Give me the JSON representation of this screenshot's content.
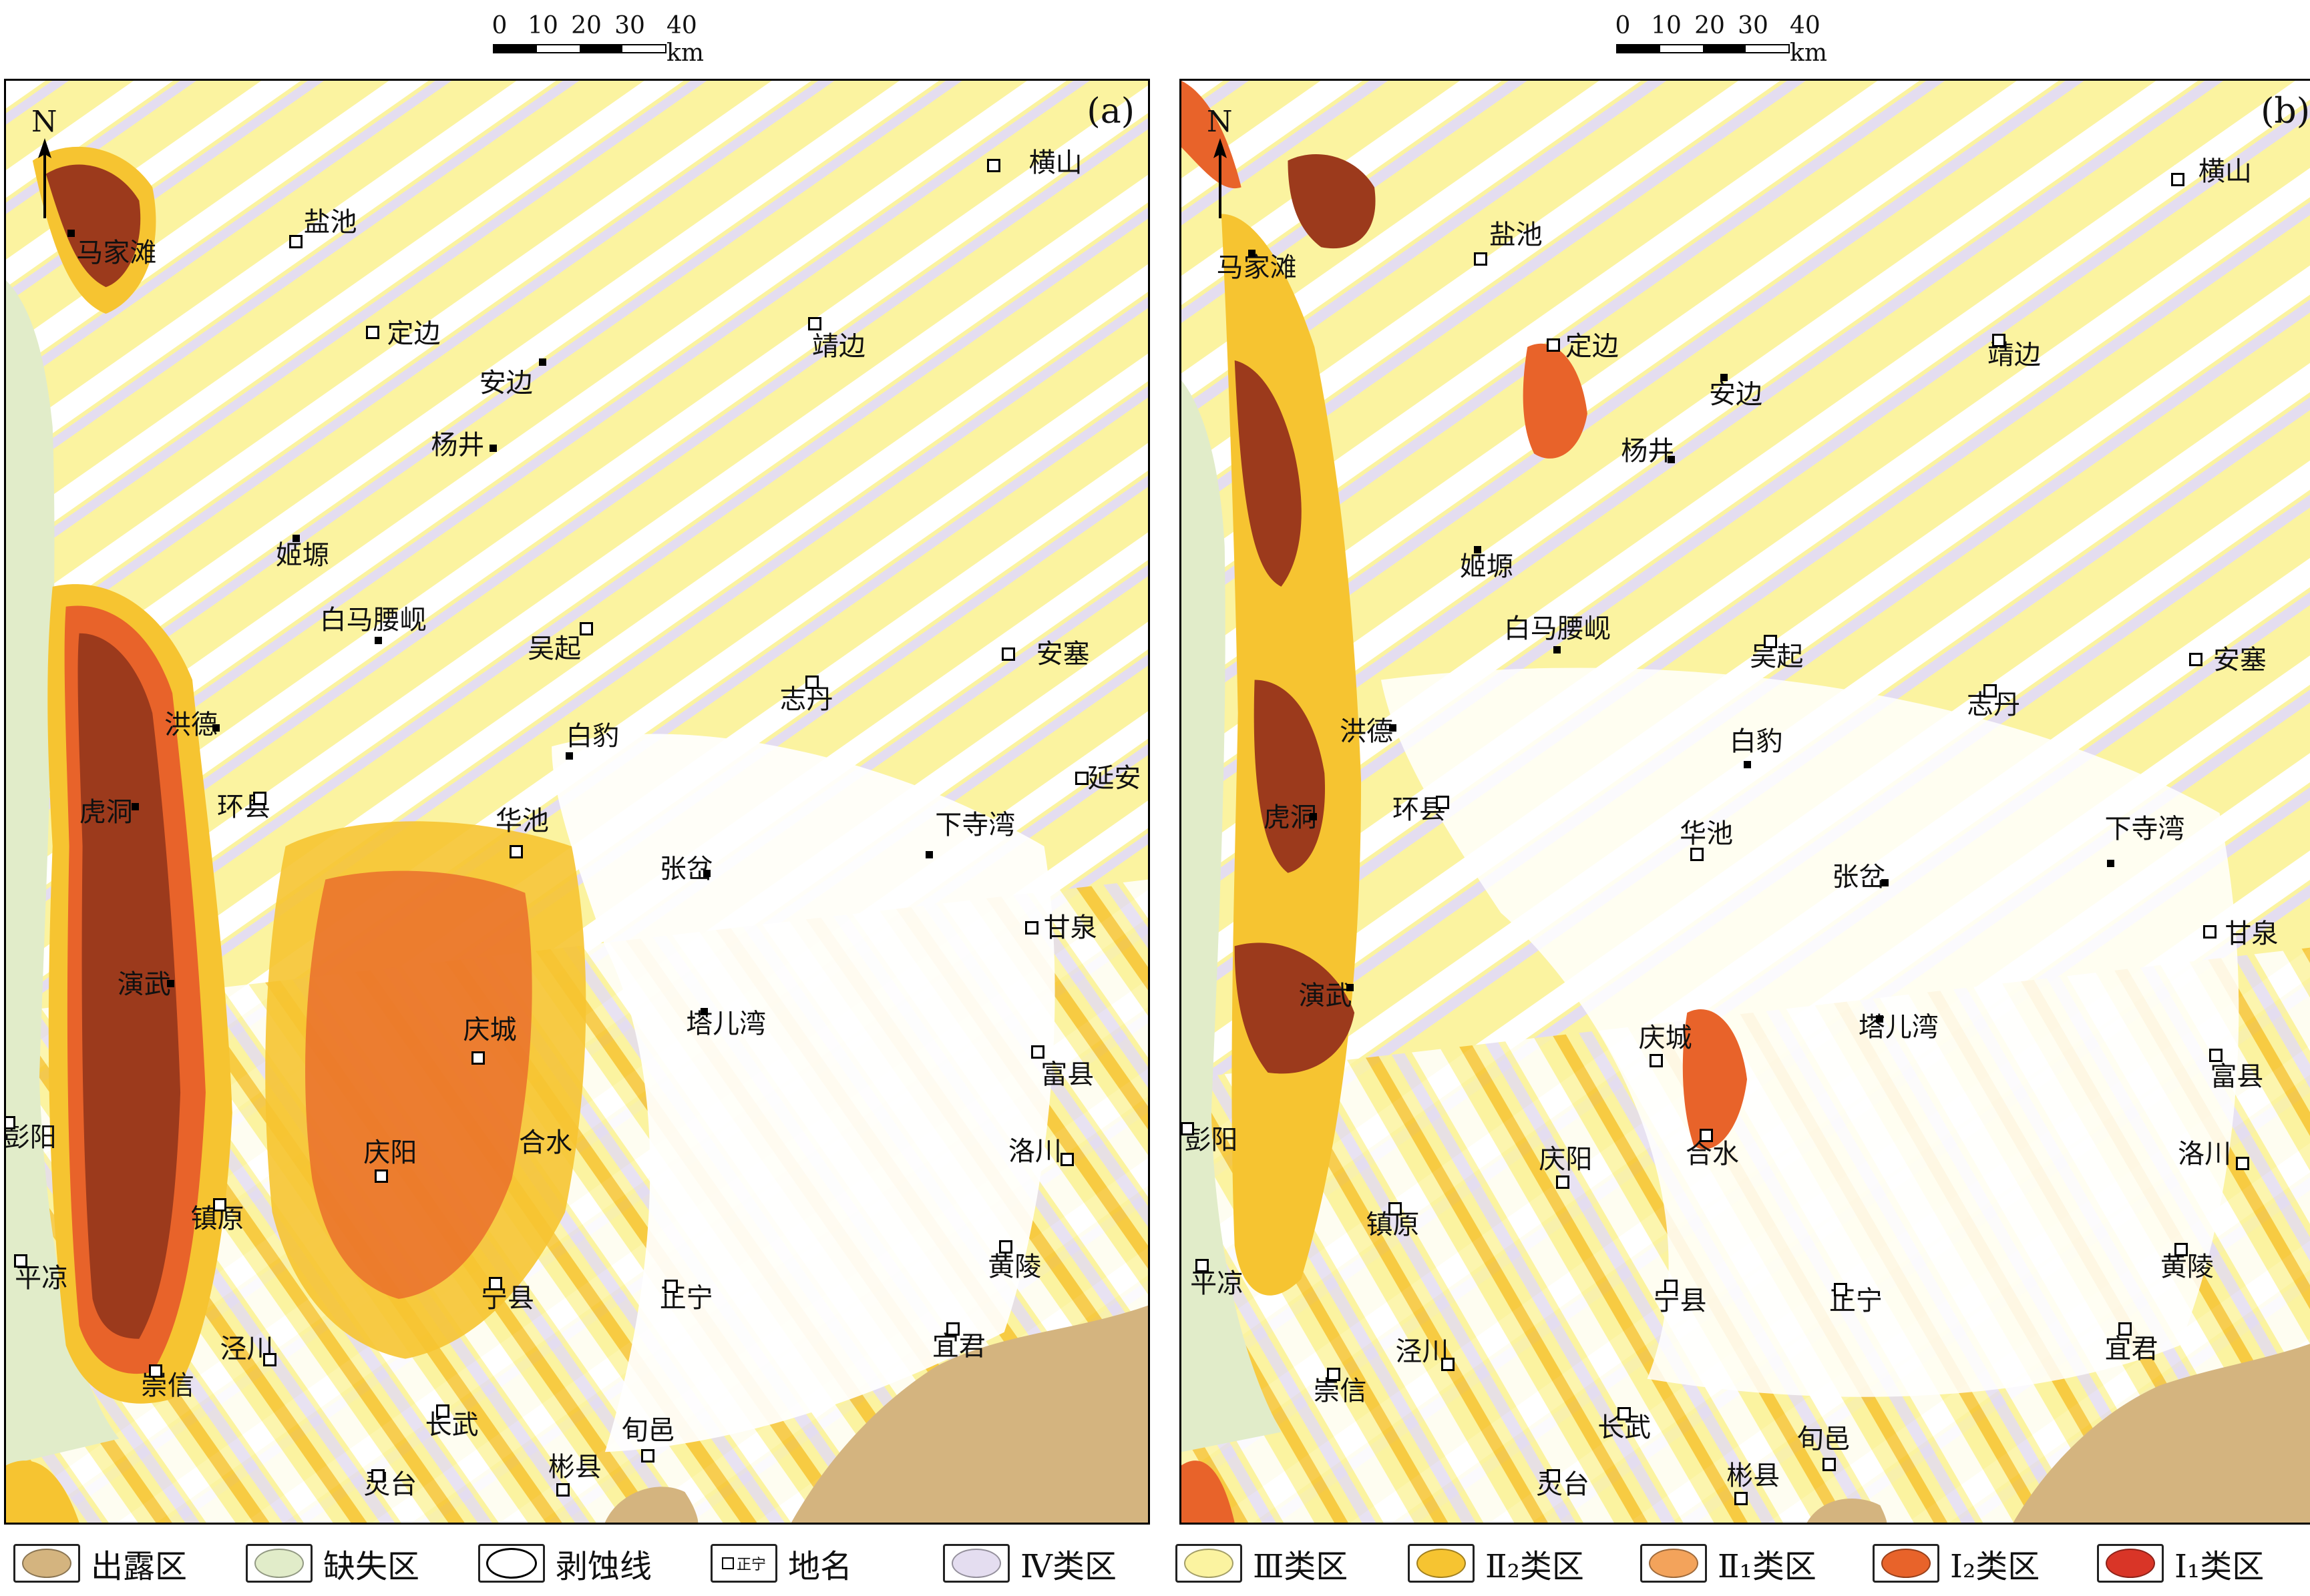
{
  "scale_bar": {
    "ticks": [
      "0",
      "10",
      "20",
      "30",
      "40 km"
    ]
  },
  "panels": [
    {
      "label": "(a)",
      "north": "N",
      "places": [
        {
          "name": "马家滩",
          "type": "dot"
        },
        {
          "name": "盐池",
          "type": "sq"
        },
        {
          "name": "横山",
          "type": "sq"
        },
        {
          "name": "定边",
          "type": "sq"
        },
        {
          "name": "安边",
          "type": "dot"
        },
        {
          "name": "靖边",
          "type": "sq"
        },
        {
          "name": "杨井",
          "type": "dot"
        },
        {
          "name": "姬塬",
          "type": "dot"
        },
        {
          "name": "白马腰岘",
          "type": "dot"
        },
        {
          "name": "吴起",
          "type": "sq"
        },
        {
          "name": "安塞",
          "type": "sq"
        },
        {
          "name": "志丹",
          "type": "sq"
        },
        {
          "name": "洪德",
          "type": "dot"
        },
        {
          "name": "白豹",
          "type": "dot"
        },
        {
          "name": "延安",
          "type": "sq"
        },
        {
          "name": "虎洞",
          "type": "dot"
        },
        {
          "name": "环县",
          "type": "sq"
        },
        {
          "name": "华池",
          "type": "sq"
        },
        {
          "name": "下寺湾",
          "type": "dot"
        },
        {
          "name": "张岔",
          "type": "dot"
        },
        {
          "name": "甘泉",
          "type": "sq"
        },
        {
          "name": "演武",
          "type": "dot"
        },
        {
          "name": "塔儿湾",
          "type": "dot"
        },
        {
          "name": "庆城",
          "type": "sq"
        },
        {
          "name": "富县",
          "type": "sq"
        },
        {
          "name": "彭阳",
          "type": "sq"
        },
        {
          "name": "庆阳",
          "type": "sq"
        },
        {
          "name": "合水",
          "type": "sq"
        },
        {
          "name": "洛川",
          "type": "sq"
        },
        {
          "name": "镇原",
          "type": "sq"
        },
        {
          "name": "平凉",
          "type": "sq"
        },
        {
          "name": "宁县",
          "type": "sq"
        },
        {
          "name": "正宁",
          "type": "sq"
        },
        {
          "name": "黄陵",
          "type": "sq"
        },
        {
          "name": "宜君",
          "type": "sq"
        },
        {
          "name": "泾川",
          "type": "sq"
        },
        {
          "name": "崇信",
          "type": "sq"
        },
        {
          "name": "长武",
          "type": "sq"
        },
        {
          "name": "旬邑",
          "type": "sq"
        },
        {
          "name": "彬县",
          "type": "sq"
        },
        {
          "name": "灵台",
          "type": "sq"
        }
      ]
    },
    {
      "label": "(b)",
      "north": "N",
      "places": [
        {
          "name": "马家滩",
          "type": "dot"
        },
        {
          "name": "盐池",
          "type": "sq"
        },
        {
          "name": "横山",
          "type": "sq"
        },
        {
          "name": "定边",
          "type": "sq"
        },
        {
          "name": "安边",
          "type": "dot"
        },
        {
          "name": "靖边",
          "type": "sq"
        },
        {
          "name": "杨井",
          "type": "dot"
        },
        {
          "name": "姬塬",
          "type": "dot"
        },
        {
          "name": "白马腰岘",
          "type": "dot"
        },
        {
          "name": "吴起",
          "type": "sq"
        },
        {
          "name": "安塞",
          "type": "sq"
        },
        {
          "name": "志丹",
          "type": "sq"
        },
        {
          "name": "洪德",
          "type": "dot"
        },
        {
          "name": "白豹",
          "type": "dot"
        },
        {
          "name": "虎洞",
          "type": "dot"
        },
        {
          "name": "环县",
          "type": "sq"
        },
        {
          "name": "华池",
          "type": "sq"
        },
        {
          "name": "下寺湾",
          "type": "dot"
        },
        {
          "name": "张岔",
          "type": "dot"
        },
        {
          "name": "甘泉",
          "type": "sq"
        },
        {
          "name": "演武",
          "type": "dot"
        },
        {
          "name": "塔儿湾",
          "type": "dot"
        },
        {
          "name": "庆城",
          "type": "sq"
        },
        {
          "name": "富县",
          "type": "sq"
        },
        {
          "name": "彭阳",
          "type": "sq"
        },
        {
          "name": "庆阳",
          "type": "sq"
        },
        {
          "name": "合水",
          "type": "sq"
        },
        {
          "name": "洛川",
          "type": "sq"
        },
        {
          "name": "镇原",
          "type": "sq"
        },
        {
          "name": "平凉",
          "type": "sq"
        },
        {
          "name": "宁县",
          "type": "sq"
        },
        {
          "name": "正宁",
          "type": "sq"
        },
        {
          "name": "黄陵",
          "type": "sq"
        },
        {
          "name": "宜君",
          "type": "sq"
        },
        {
          "name": "泾川",
          "type": "sq"
        },
        {
          "name": "崇信",
          "type": "sq"
        },
        {
          "name": "长武",
          "type": "sq"
        },
        {
          "name": "旬邑",
          "type": "sq"
        },
        {
          "name": "彬县",
          "type": "sq"
        },
        {
          "name": "灵台",
          "type": "sq"
        }
      ]
    }
  ],
  "legend": [
    {
      "label": "出露区",
      "color": "#d4b47f"
    },
    {
      "label": "缺失区",
      "color": "#e1ecc9"
    },
    {
      "label": "剥蚀线",
      "color": "#ffffff"
    },
    {
      "label": "地名",
      "sample": "正宁"
    },
    {
      "label": "Ⅳ类区",
      "color": "#e4ddf0"
    },
    {
      "label": "Ⅲ类区",
      "color": "#fbf3a0"
    },
    {
      "label": "Ⅱ₂类区",
      "color": "#f6c431"
    },
    {
      "label": "Ⅱ₁类区",
      "color": "#f3a35b"
    },
    {
      "label": "Ⅰ₂类区",
      "color": "#e8632a"
    },
    {
      "label": "Ⅰ₁类区",
      "color": "#d93527"
    }
  ],
  "colors": {
    "class_IV": "#e4ddf0",
    "class_III": "#fbf3a0",
    "class_II2": "#f6c431",
    "class_II1": "#f3a35b",
    "class_I2": "#e8632a",
    "class_I1": "#d93527",
    "core": "#9c3a1c",
    "exposed": "#d4b47f",
    "missing": "#e1ecc9"
  }
}
